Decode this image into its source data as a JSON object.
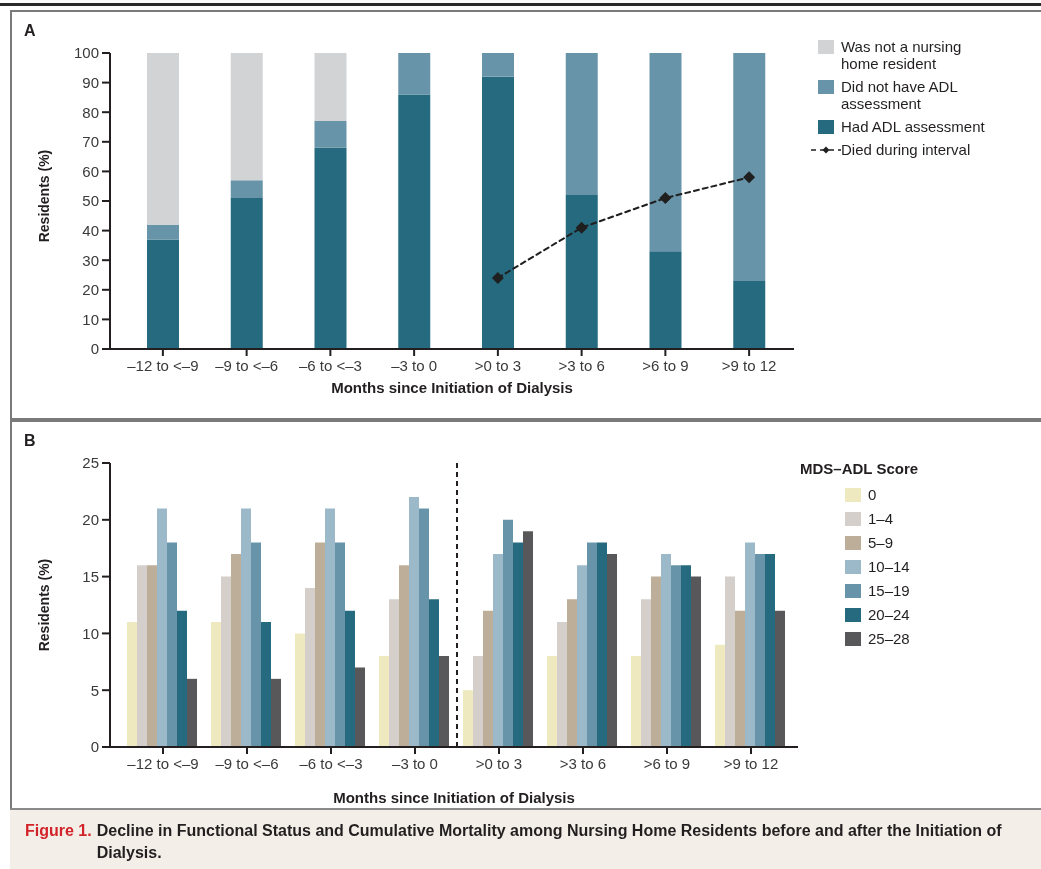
{
  "chart_data": [
    {
      "type": "bar",
      "title": "A",
      "categories": [
        "–12 to <–9",
        "–9 to <–6",
        "–6 to <–3",
        "–3 to 0",
        ">0 to 3",
        ">3 to 6",
        ">6 to 9",
        ">9 to 12"
      ],
      "xlabel": "Months since Initiation of Dialysis",
      "ylabel": "Residents (%)",
      "stacked": true,
      "series": [
        {
          "name": "Had ADL assessment",
          "color": "#266a80",
          "values": [
            37,
            51,
            68,
            86,
            92,
            52,
            33,
            23
          ]
        },
        {
          "name": "Did not have ADL assessment",
          "color": "#6894a9",
          "values": [
            5,
            6,
            9,
            14,
            8,
            48,
            67,
            77
          ]
        },
        {
          "name": "Was not a nursing home resident",
          "color": "#d1d3d5",
          "values": [
            58,
            43,
            23,
            0,
            0,
            0,
            0,
            0
          ]
        },
        {
          "name": "Died during interval",
          "type": "line",
          "color": "#1f1f1f",
          "line_style": "dashed",
          "marker": "diamond",
          "values": [
            null,
            null,
            null,
            null,
            24,
            41,
            51,
            58
          ]
        }
      ],
      "ylim": [
        0,
        100
      ],
      "yticks": [
        0,
        10,
        20,
        30,
        40,
        50,
        60,
        70,
        80,
        90,
        100
      ],
      "legend": "top right"
    },
    {
      "type": "bar",
      "title": "B",
      "categories": [
        "–12 to <–9",
        "–9 to <–6",
        "–6 to <–3",
        "–3 to 0",
        ">0 to 3",
        ">3 to 6",
        ">6 to 9",
        ">9 to 12"
      ],
      "xlabel": "Months since Initiation of Dialysis",
      "ylabel": "Residents (%)",
      "legend_title": "MDS–ADL Score",
      "series": [
        {
          "name": "0",
          "color": "#efe9bf",
          "values": [
            11,
            11,
            10,
            8,
            5,
            8,
            8,
            9
          ]
        },
        {
          "name": "1–4",
          "color": "#d4cfca",
          "values": [
            16,
            15,
            14,
            13,
            8,
            11,
            13,
            15
          ]
        },
        {
          "name": "5–9",
          "color": "#bcae98",
          "values": [
            16,
            17,
            18,
            16,
            12,
            13,
            15,
            12
          ]
        },
        {
          "name": "10–14",
          "color": "#9cb9c9",
          "values": [
            21,
            21,
            21,
            22,
            17,
            16,
            17,
            18
          ]
        },
        {
          "name": "15–19",
          "color": "#6894a9",
          "values": [
            18,
            18,
            18,
            21,
            20,
            18,
            16,
            17
          ]
        },
        {
          "name": "20–24",
          "color": "#266a80",
          "values": [
            12,
            11,
            12,
            13,
            18,
            18,
            16,
            17
          ]
        },
        {
          "name": "25–28",
          "color": "#58585a",
          "values": [
            6,
            6,
            7,
            8,
            19,
            17,
            15,
            12
          ]
        }
      ],
      "ylim": [
        0,
        25
      ],
      "yticks": [
        0,
        5,
        10,
        15,
        20,
        25
      ],
      "legend": "top right",
      "annotations": [
        "Figure 1.",
        "Decline in Functional Status and Cumulative Mortality among Nursing Home Residents before and after the Initiation of Dialysis."
      ]
    }
  ]
}
